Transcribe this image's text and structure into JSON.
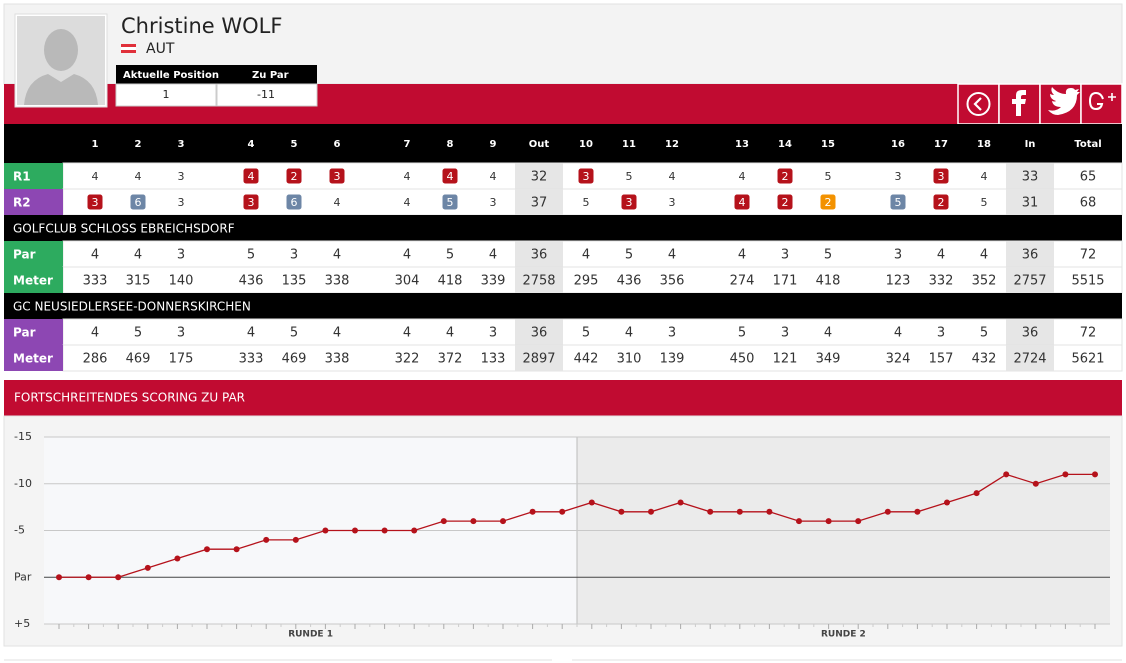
{
  "player": {
    "name": "Christine WOLF",
    "country": "AUT"
  },
  "position": {
    "headers": [
      "Aktuelle Position",
      "Zu Par"
    ],
    "values": [
      1,
      -11
    ]
  },
  "scorecard": {
    "columns": [
      1,
      2,
      3,
      4,
      5,
      6,
      7,
      8,
      9,
      "Out",
      10,
      11,
      12,
      13,
      14,
      15,
      16,
      17,
      18,
      "In",
      "Total"
    ],
    "rounds": [
      {
        "label": "R1",
        "color": "#2dab5f",
        "values": [
          4,
          4,
          3,
          4,
          2,
          3,
          4,
          4,
          4,
          32,
          3,
          5,
          4,
          4,
          2,
          5,
          3,
          3,
          4,
          33,
          65
        ],
        "marks": [
          null,
          null,
          null,
          "#b5121b",
          "#b5121b",
          "#b5121b",
          null,
          "#b5121b",
          null,
          null,
          "#b5121b",
          null,
          null,
          null,
          "#b5121b",
          null,
          null,
          "#b5121b",
          null,
          null,
          null
        ]
      },
      {
        "label": "R2",
        "color": "#8d47b3",
        "values": [
          3,
          6,
          3,
          3,
          6,
          4,
          4,
          5,
          3,
          37,
          5,
          3,
          3,
          4,
          2,
          2,
          5,
          2,
          5,
          31,
          68
        ],
        "marks": [
          "#b5121b",
          "#6d86a6",
          null,
          "#b5121b",
          "#6d86a6",
          null,
          null,
          "#6d86a6",
          null,
          null,
          null,
          "#b5121b",
          null,
          "#b5121b",
          "#b5121b",
          "#f39200",
          "#6d86a6",
          "#b5121b",
          null,
          null,
          null
        ]
      }
    ]
  },
  "courses": [
    {
      "name": "GOLFCLUB SCHLOSS EBREICHSDORF",
      "color": "#2dab5f",
      "rows": [
        {
          "label": "Par",
          "values": [
            4,
            4,
            3,
            5,
            3,
            4,
            4,
            5,
            4,
            36,
            4,
            5,
            4,
            4,
            3,
            5,
            3,
            4,
            4,
            36,
            72
          ]
        },
        {
          "label": "Meter",
          "values": [
            333,
            315,
            140,
            436,
            135,
            338,
            304,
            418,
            339,
            2758,
            295,
            436,
            356,
            274,
            171,
            418,
            123,
            332,
            352,
            2757,
            5515
          ]
        }
      ]
    },
    {
      "name": "GC NEUSIEDLERSEE-DONNERSKIRCHEN",
      "color": "#8d47b3",
      "rows": [
        {
          "label": "Par",
          "values": [
            4,
            5,
            3,
            4,
            5,
            4,
            4,
            4,
            3,
            36,
            5,
            4,
            3,
            5,
            3,
            4,
            4,
            3,
            5,
            36,
            72
          ]
        },
        {
          "label": "Meter",
          "values": [
            286,
            469,
            175,
            333,
            469,
            338,
            322,
            372,
            133,
            2897,
            442,
            310,
            139,
            450,
            121,
            349,
            324,
            157,
            432,
            2724,
            5621
          ]
        }
      ]
    }
  ],
  "chart_data": {
    "type": "line",
    "title": "FORTSCHREITENDES SCORING ZU PAR",
    "groups": [
      "RUNDE 1",
      "RUNDE 2"
    ],
    "values": [
      0,
      0,
      0,
      -1,
      -2,
      -3,
      -3,
      -4,
      -4,
      -5,
      -5,
      -5,
      -5,
      -6,
      -6,
      -6,
      -7,
      -7,
      -8,
      -7,
      -7,
      -8,
      -7,
      -7,
      -7,
      -6,
      -6,
      -6,
      -7,
      -7,
      -8,
      -9,
      -11,
      -10,
      -11,
      -11
    ],
    "color": "#b5121b",
    "ylim": [
      5,
      -15
    ],
    "yticks": [
      -15,
      -10,
      -5,
      {
        "value": 0,
        "label": "Par"
      },
      {
        "value": 5,
        "label": "+5"
      }
    ],
    "grid": true
  }
}
